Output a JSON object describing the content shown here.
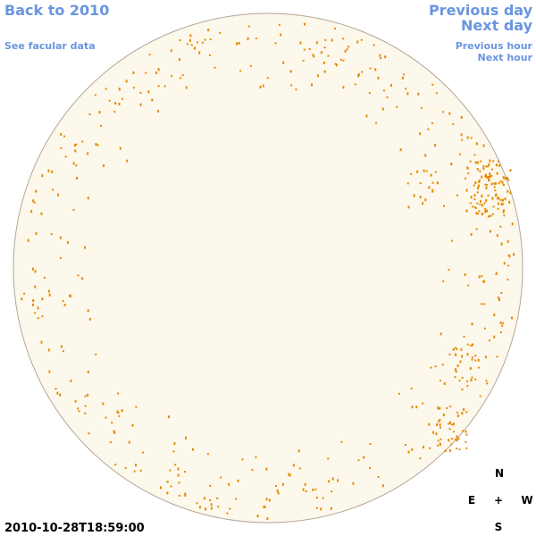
{
  "navigation": {
    "back": "Back to 2010",
    "facular": "See facular data",
    "previous_day": "Previous day",
    "next_day": "Next day",
    "previous_hour": "Previous hour",
    "next_hour": "Next hour"
  },
  "timestamp": "2010-10-28T18:59:00",
  "compass": {
    "north": "N",
    "east": "E",
    "center": "+",
    "west": "W",
    "south": "S"
  }
}
